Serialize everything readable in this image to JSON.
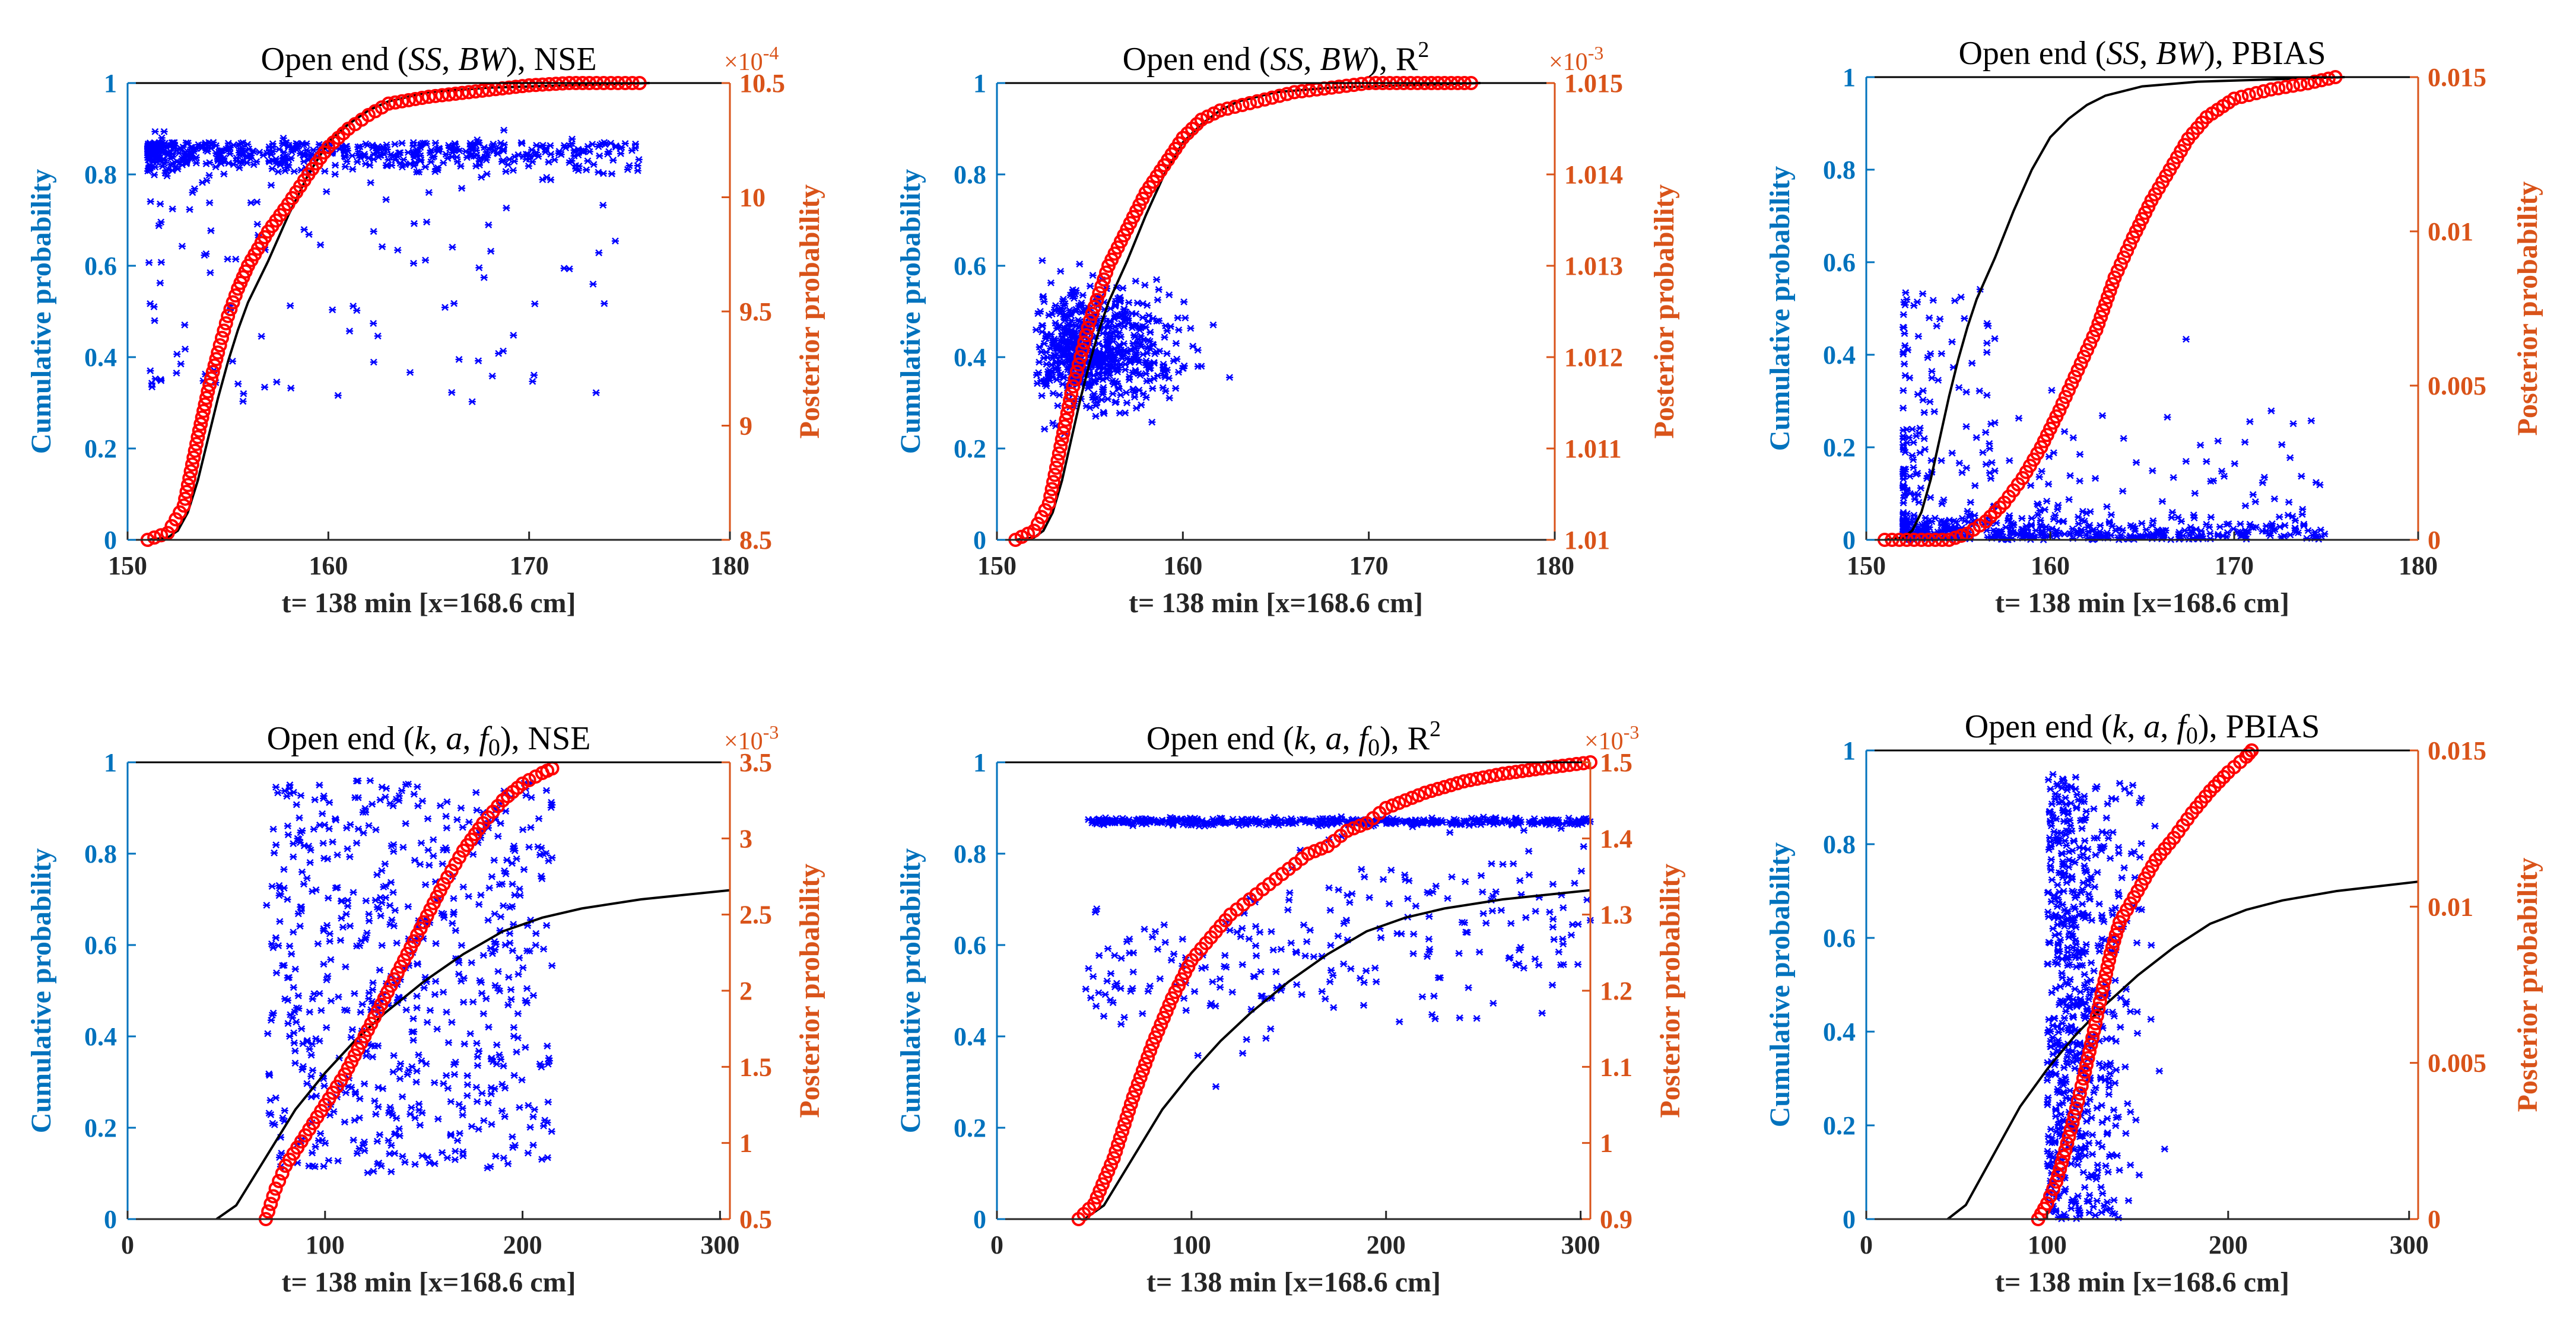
{
  "figure": {
    "colors": {
      "left_axis": "#0072BD",
      "right_axis": "#D95319",
      "scatter": "#0000FF",
      "posterior": "#FF0000",
      "cdf": "#000000"
    }
  },
  "chart_data": [
    {
      "type": "scatter",
      "title": {
        "prefix": "Open end (",
        "p1": "SS",
        "sep": ", ",
        "p2": "BW",
        "suffix": "), NSE"
      },
      "xlabel": "t= 138 min [x=168.6 cm]",
      "ylabel_left": "Cumulative probability",
      "ylabel_right": "Posterior probability",
      "xlim": [
        150,
        180
      ],
      "xticks": [
        "150",
        "160",
        "170",
        "180"
      ],
      "ylim_left": [
        0,
        1
      ],
      "yticks_left": [
        "0",
        "0.2",
        "0.4",
        "0.6",
        "0.8",
        "1"
      ],
      "ylim_right": [
        8.5,
        10.5
      ],
      "yticks_right": [
        "8.5",
        "9",
        "9.5",
        "10",
        "10.5"
      ],
      "right_exponent": "×10",
      "right_exponent_power": "-4",
      "cdf_curve": [
        [
          151,
          0
        ],
        [
          152,
          0.005
        ],
        [
          152.5,
          0.02
        ],
        [
          153,
          0.06
        ],
        [
          153.5,
          0.13
        ],
        [
          154,
          0.22
        ],
        [
          154.5,
          0.31
        ],
        [
          155,
          0.39
        ],
        [
          155.5,
          0.46
        ],
        [
          156,
          0.52
        ],
        [
          157,
          0.61
        ],
        [
          158,
          0.71
        ],
        [
          159,
          0.8
        ],
        [
          160,
          0.87
        ],
        [
          161,
          0.91
        ],
        [
          162,
          0.94
        ],
        [
          163,
          0.96
        ],
        [
          165,
          0.98
        ],
        [
          168,
          0.99
        ],
        [
          176,
          1
        ]
      ],
      "posterior_points": [
        [
          151,
          8.5
        ],
        [
          152,
          8.53
        ],
        [
          152.8,
          8.65
        ],
        [
          153.5,
          8.95
        ],
        [
          154,
          9.15
        ],
        [
          154.5,
          9.32
        ],
        [
          155,
          9.48
        ],
        [
          155.5,
          9.6
        ],
        [
          156,
          9.7
        ],
        [
          157,
          9.85
        ],
        [
          158,
          9.97
        ],
        [
          159,
          10.1
        ],
        [
          160,
          10.22
        ],
        [
          161,
          10.3
        ],
        [
          162,
          10.36
        ],
        [
          163,
          10.41
        ],
        [
          165,
          10.44
        ],
        [
          167,
          10.46
        ],
        [
          169,
          10.48
        ],
        [
          170,
          10.49
        ],
        [
          172,
          10.5
        ],
        [
          173,
          10.5
        ],
        [
          175.5,
          10.5
        ]
      ],
      "scatter_cloud": {
        "x_range": [
          151,
          175.5
        ],
        "y_center": 0.83,
        "description": "dense band of samples between 0.7 and 0.9, sparse outliers down to 0.3"
      }
    },
    {
      "type": "scatter",
      "title": {
        "prefix": "Open end (",
        "p1": "SS",
        "sep": ", ",
        "p2": "BW",
        "suffix": "), R",
        "sup": "2"
      },
      "xlabel": "t= 138 min [x=168.6 cm]",
      "ylabel_left": "Cumulative probability",
      "ylabel_right": "Posterior probability",
      "xlim": [
        150,
        180
      ],
      "xticks": [
        "150",
        "160",
        "170",
        "180"
      ],
      "ylim_left": [
        0,
        1
      ],
      "yticks_left": [
        "0",
        "0.2",
        "0.4",
        "0.6",
        "0.8",
        "1"
      ],
      "ylim_right": [
        1.01,
        1.015
      ],
      "yticks_right": [
        "1.01",
        "1.011",
        "1.012",
        "1.013",
        "1.014",
        "1.015"
      ],
      "right_exponent": "×10",
      "right_exponent_power": "-3",
      "cdf_curve": [
        [
          151,
          0
        ],
        [
          152,
          0.005
        ],
        [
          152.5,
          0.02
        ],
        [
          153,
          0.06
        ],
        [
          153.5,
          0.13
        ],
        [
          154,
          0.22
        ],
        [
          154.5,
          0.31
        ],
        [
          155,
          0.39
        ],
        [
          155.5,
          0.46
        ],
        [
          156,
          0.52
        ],
        [
          157,
          0.61
        ],
        [
          158,
          0.71
        ],
        [
          159,
          0.8
        ],
        [
          160,
          0.87
        ],
        [
          161,
          0.91
        ],
        [
          162,
          0.94
        ],
        [
          163,
          0.96
        ],
        [
          165,
          0.98
        ],
        [
          168,
          0.99
        ],
        [
          176,
          1
        ]
      ],
      "posterior_points": [
        [
          151,
          1.01
        ],
        [
          152,
          1.0101
        ],
        [
          152.8,
          1.0104
        ],
        [
          153.5,
          1.0111
        ],
        [
          154,
          1.0116
        ],
        [
          154.5,
          1.012
        ],
        [
          155,
          1.0124
        ],
        [
          155.5,
          1.0127
        ],
        [
          156,
          1.013
        ],
        [
          157,
          1.0134
        ],
        [
          158,
          1.0138
        ],
        [
          159,
          1.0141
        ],
        [
          160,
          1.0144
        ],
        [
          161,
          1.0146
        ],
        [
          162,
          1.0147
        ],
        [
          164,
          1.0148
        ],
        [
          166,
          1.0149
        ],
        [
          168,
          1.01495
        ],
        [
          170,
          1.015
        ],
        [
          173,
          1.015
        ],
        [
          175.5,
          1.015
        ]
      ],
      "scatter_cloud": {
        "x_range": [
          151,
          176
        ],
        "y_center": 0.42,
        "description": "broad cloud between 0.2 and 0.7, densest near x 153-158"
      }
    },
    {
      "type": "scatter",
      "title": {
        "prefix": "Open end (",
        "p1": "SS",
        "sep": ", ",
        "p2": "BW",
        "suffix": "), PBIAS"
      },
      "xlabel": "t= 138 min [x=168.6 cm]",
      "ylabel_left": "Cumulative probability",
      "ylabel_right": "Posterior probability",
      "xlim": [
        150,
        180
      ],
      "xticks": [
        "150",
        "160",
        "170",
        "180"
      ],
      "ylim_left": [
        0,
        1
      ],
      "yticks_left": [
        "0",
        "0.2",
        "0.4",
        "0.6",
        "0.8",
        "1"
      ],
      "ylim_right": [
        0,
        0.015
      ],
      "yticks_right": [
        "0",
        "0.005",
        "0.01",
        "0.015"
      ],
      "right_exponent": "",
      "right_exponent_power": "",
      "cdf_curve": [
        [
          151,
          0
        ],
        [
          152,
          0.005
        ],
        [
          152.5,
          0.02
        ],
        [
          153,
          0.06
        ],
        [
          153.5,
          0.13
        ],
        [
          154,
          0.22
        ],
        [
          154.5,
          0.31
        ],
        [
          155,
          0.39
        ],
        [
          155.5,
          0.46
        ],
        [
          156,
          0.52
        ],
        [
          157,
          0.61
        ],
        [
          158,
          0.71
        ],
        [
          159,
          0.8
        ],
        [
          160,
          0.87
        ],
        [
          161,
          0.91
        ],
        [
          162,
          0.94
        ],
        [
          163,
          0.96
        ],
        [
          165,
          0.98
        ],
        [
          168,
          0.99
        ],
        [
          176,
          1
        ]
      ],
      "posterior_points": [
        [
          151,
          0
        ],
        [
          153,
          0
        ],
        [
          154.5,
          0
        ],
        [
          155.5,
          0.0002
        ],
        [
          156.5,
          0.0006
        ],
        [
          157.5,
          0.0012
        ],
        [
          158.5,
          0.002
        ],
        [
          159.5,
          0.003
        ],
        [
          160.5,
          0.0042
        ],
        [
          161.5,
          0.0055
        ],
        [
          162.5,
          0.0068
        ],
        [
          163.5,
          0.0085
        ],
        [
          164.5,
          0.0098
        ],
        [
          165.5,
          0.011
        ],
        [
          166.5,
          0.012
        ],
        [
          167.5,
          0.013
        ],
        [
          168.5,
          0.0137
        ],
        [
          170,
          0.0143
        ],
        [
          172,
          0.0146
        ],
        [
          174,
          0.0148
        ],
        [
          175.5,
          0.015
        ]
      ],
      "scatter_cloud": {
        "x_range": [
          151,
          176
        ],
        "y_center": 0.05,
        "description": "samples concentrated near 0, spread up to 0.5 around x 153-156, a few near 0.9"
      }
    },
    {
      "type": "scatter",
      "title": {
        "prefix": "Open end (",
        "p1": "k",
        "sep": ", ",
        "p2": "a",
        "sep2": ", ",
        "p3": "f",
        "p3sub": "0",
        "suffix": "), NSE"
      },
      "xlabel": "t= 138 min [x=168.6 cm]",
      "ylabel_left": "Cumulative probability",
      "ylabel_right": "Posterior probability",
      "xlim": [
        0,
        305
      ],
      "xticks": [
        "0",
        "100",
        "200",
        "300"
      ],
      "ylim_left": [
        0,
        1
      ],
      "yticks_left": [
        "0",
        "0.2",
        "0.4",
        "0.6",
        "0.8",
        "1"
      ],
      "ylim_right": [
        0.5,
        3.5
      ],
      "yticks_right": [
        "0.5",
        "1",
        "1.5",
        "2",
        "2.5",
        "3",
        "3.5"
      ],
      "right_exponent": "×10",
      "right_exponent_power": "-3",
      "cdf_curve": [
        [
          45,
          0
        ],
        [
          55,
          0.03
        ],
        [
          65,
          0.1
        ],
        [
          75,
          0.17
        ],
        [
          85,
          0.24
        ],
        [
          100,
          0.32
        ],
        [
          115,
          0.39
        ],
        [
          130,
          0.45
        ],
        [
          150,
          0.52
        ],
        [
          170,
          0.58
        ],
        [
          190,
          0.63
        ],
        [
          210,
          0.66
        ],
        [
          230,
          0.68
        ],
        [
          260,
          0.7
        ],
        [
          305,
          0.72
        ]
      ],
      "posterior_points": [
        [
          70,
          0.5
        ],
        [
          75,
          0.7
        ],
        [
          80,
          0.85
        ],
        [
          90,
          1.05
        ],
        [
          100,
          1.25
        ],
        [
          110,
          1.45
        ],
        [
          120,
          1.7
        ],
        [
          130,
          1.95
        ],
        [
          140,
          2.2
        ],
        [
          150,
          2.45
        ],
        [
          160,
          2.7
        ],
        [
          170,
          2.92
        ],
        [
          180,
          3.1
        ],
        [
          190,
          3.25
        ],
        [
          200,
          3.36
        ],
        [
          210,
          3.43
        ],
        [
          215,
          3.46
        ]
      ],
      "scatter_cloud": {
        "x_range": [
          70,
          215
        ],
        "y_center": 0.55,
        "description": "uniform cloud spanning 0.1 to 0.95 over x 70-215"
      }
    },
    {
      "type": "scatter",
      "title": {
        "prefix": "Open end (",
        "p1": "k",
        "sep": ", ",
        "p2": "a",
        "sep2": ", ",
        "p3": "f",
        "p3sub": "0",
        "suffix": "), R",
        "sup": "2"
      },
      "xlabel": "t= 138 min [x=168.6 cm]",
      "ylabel_left": "Cumulative probability",
      "ylabel_right": "Posterior probability",
      "xlim": [
        0,
        305
      ],
      "xticks": [
        "0",
        "100",
        "200",
        "300"
      ],
      "ylim_left": [
        0,
        1
      ],
      "yticks_left": [
        "0",
        "0.2",
        "0.4",
        "0.6",
        "0.8",
        "1"
      ],
      "ylim_right": [
        0.9,
        1.5
      ],
      "yticks_right": [
        "0.9",
        "1",
        "1.1",
        "1.2",
        "1.3",
        "1.4",
        "1.5"
      ],
      "right_exponent": "×10",
      "right_exponent_power": "-3",
      "cdf_curve": [
        [
          45,
          0
        ],
        [
          55,
          0.03
        ],
        [
          65,
          0.1
        ],
        [
          75,
          0.17
        ],
        [
          85,
          0.24
        ],
        [
          100,
          0.32
        ],
        [
          115,
          0.39
        ],
        [
          130,
          0.45
        ],
        [
          150,
          0.52
        ],
        [
          170,
          0.58
        ],
        [
          190,
          0.63
        ],
        [
          210,
          0.66
        ],
        [
          230,
          0.68
        ],
        [
          260,
          0.7
        ],
        [
          305,
          0.72
        ]
      ],
      "posterior_points": [
        [
          42,
          0.9
        ],
        [
          50,
          0.92
        ],
        [
          60,
          0.98
        ],
        [
          70,
          1.06
        ],
        [
          80,
          1.13
        ],
        [
          90,
          1.19
        ],
        [
          100,
          1.24
        ],
        [
          110,
          1.27
        ],
        [
          120,
          1.3
        ],
        [
          130,
          1.32
        ],
        [
          140,
          1.34
        ],
        [
          150,
          1.36
        ],
        [
          160,
          1.38
        ],
        [
          170,
          1.39
        ],
        [
          180,
          1.41
        ],
        [
          190,
          1.42
        ],
        [
          200,
          1.44
        ],
        [
          220,
          1.46
        ],
        [
          240,
          1.475
        ],
        [
          260,
          1.485
        ],
        [
          280,
          1.492
        ],
        [
          305,
          1.5
        ]
      ],
      "scatter_cloud": {
        "x_range": [
          45,
          305
        ],
        "y_center": 0.86,
        "description": "dense horizontal band near 0.87, scattered samples down to 0.15"
      }
    },
    {
      "type": "scatter",
      "title": {
        "prefix": "Open end (",
        "p1": "k",
        "sep": ", ",
        "p2": "a",
        "sep2": ", ",
        "p3": "f",
        "p3sub": "0",
        "suffix": "), PBIAS"
      },
      "xlabel": "t= 138 min [x=168.6 cm]",
      "ylabel_left": "Cumulative probability",
      "ylabel_right": "Posterior probability",
      "xlim": [
        0,
        305
      ],
      "xticks": [
        "0",
        "100",
        "200",
        "300"
      ],
      "ylim_left": [
        0,
        1
      ],
      "yticks_left": [
        "0",
        "0.2",
        "0.4",
        "0.6",
        "0.8",
        "1"
      ],
      "ylim_right": [
        0,
        0.015
      ],
      "yticks_right": [
        "0",
        "0.005",
        "0.01",
        "0.015"
      ],
      "right_exponent": "",
      "right_exponent_power": "",
      "cdf_curve": [
        [
          45,
          0
        ],
        [
          55,
          0.03
        ],
        [
          65,
          0.1
        ],
        [
          75,
          0.17
        ],
        [
          85,
          0.24
        ],
        [
          100,
          0.32
        ],
        [
          115,
          0.39
        ],
        [
          130,
          0.45
        ],
        [
          150,
          0.52
        ],
        [
          170,
          0.58
        ],
        [
          190,
          0.63
        ],
        [
          210,
          0.66
        ],
        [
          230,
          0.68
        ],
        [
          260,
          0.7
        ],
        [
          305,
          0.72
        ]
      ],
      "posterior_points": [
        [
          95,
          0
        ],
        [
          100,
          0.0005
        ],
        [
          105,
          0.0012
        ],
        [
          110,
          0.0022
        ],
        [
          115,
          0.0033
        ],
        [
          120,
          0.0045
        ],
        [
          125,
          0.0058
        ],
        [
          130,
          0.0072
        ],
        [
          135,
          0.0085
        ],
        [
          140,
          0.0095
        ],
        [
          150,
          0.0105
        ],
        [
          160,
          0.0115
        ],
        [
          170,
          0.0122
        ],
        [
          180,
          0.013
        ],
        [
          190,
          0.0137
        ],
        [
          200,
          0.0143
        ],
        [
          210,
          0.0148
        ],
        [
          213,
          0.015
        ]
      ],
      "scatter_cloud": {
        "x_range": [
          100,
          210
        ],
        "y_center": 0.4,
        "description": "cloud from 0 to 1 concentrated at x 110-170"
      }
    }
  ]
}
